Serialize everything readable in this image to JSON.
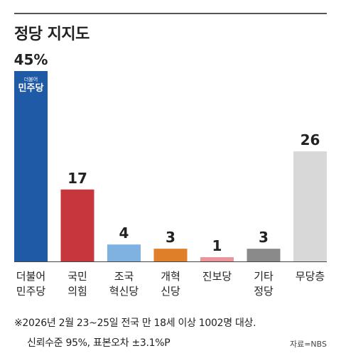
{
  "header": {
    "title": "정당 지지도"
  },
  "chart_data": {
    "type": "bar",
    "title": "정당 지지도",
    "xlabel": "",
    "ylabel": "",
    "ylim": [
      0,
      45
    ],
    "categories": [
      [
        "더불어",
        "민주당"
      ],
      [
        "국민",
        "의힘"
      ],
      [
        "조국",
        "혁신당"
      ],
      [
        "개혁",
        "신당"
      ],
      [
        "진보당"
      ],
      [
        "기타",
        "정당"
      ],
      [
        "무당층"
      ]
    ],
    "values": [
      45,
      17,
      4,
      3,
      1,
      3,
      26
    ],
    "value_labels": [
      "45%",
      "17",
      "4",
      "3",
      "1",
      "3",
      "26"
    ],
    "colors": [
      "#1f5aa6",
      "#c8363d",
      "#7fb2e0",
      "#e07f2a",
      "#e9959a",
      "#8a8a8a",
      "#d8d8d8"
    ],
    "logo_text": [
      "더불어",
      "민주당"
    ]
  },
  "footnote": {
    "line1": "※2026년 2월 23~25일 전국 만 18세 이상 1002명 대상.",
    "line2": "신뢰수준 95%, 표본오차 ±3.1%P",
    "source": "자료=NBS"
  }
}
